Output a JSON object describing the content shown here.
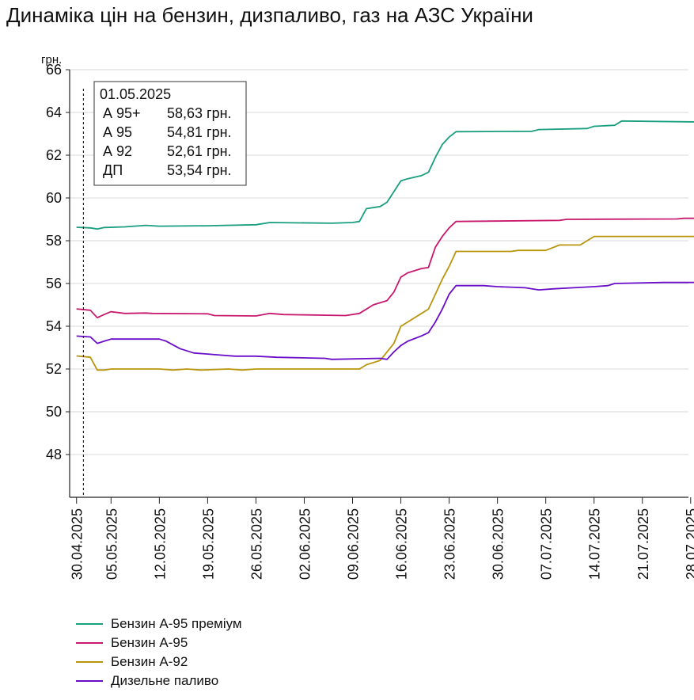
{
  "title": "Динаміка цін на бензин, дизпаливо, газ на АЗС України",
  "chart_data": {
    "type": "line",
    "title": "Динаміка цін на бензин, дизпаливо, газ на АЗС України",
    "ylabel": "грн.",
    "xlabel": "",
    "ylim": [
      46,
      66
    ],
    "yticks": [
      48,
      50,
      52,
      54,
      56,
      58,
      60,
      62,
      64,
      66
    ],
    "xlim": [
      "2025-04-29",
      "2025-08-01"
    ],
    "xticks": [
      "30.04.2025",
      "05.05.2025",
      "12.05.2025",
      "19.05.2025",
      "26.05.2025",
      "02.06.2025",
      "09.06.2025",
      "16.06.2025",
      "23.06.2025",
      "30.06.2025",
      "07.07.2025",
      "14.07.2025",
      "21.07.2025",
      "28.07.2025"
    ],
    "grid": "horizontal",
    "legend_position": "bottom-left",
    "series": [
      {
        "name": "Бензин А-95 преміум",
        "color": "#1a9e80",
        "points": [
          [
            "2025-04-30",
            58.63
          ],
          [
            "2025-05-02",
            58.6
          ],
          [
            "2025-05-03",
            58.55
          ],
          [
            "2025-05-04",
            58.62
          ],
          [
            "2025-05-07",
            58.65
          ],
          [
            "2025-05-10",
            58.72
          ],
          [
            "2025-05-12",
            58.68
          ],
          [
            "2025-05-19",
            58.7
          ],
          [
            "2025-05-26",
            58.75
          ],
          [
            "2025-05-28",
            58.85
          ],
          [
            "2025-06-06",
            58.82
          ],
          [
            "2025-06-09",
            58.85
          ],
          [
            "2025-06-10",
            58.9
          ],
          [
            "2025-06-11",
            59.5
          ],
          [
            "2025-06-13",
            59.6
          ],
          [
            "2025-06-14",
            59.8
          ],
          [
            "2025-06-16",
            60.8
          ],
          [
            "2025-06-17",
            60.9
          ],
          [
            "2025-06-19",
            61.05
          ],
          [
            "2025-06-20",
            61.2
          ],
          [
            "2025-06-21",
            61.9
          ],
          [
            "2025-06-22",
            62.5
          ],
          [
            "2025-06-23",
            62.85
          ],
          [
            "2025-06-24",
            63.1
          ],
          [
            "2025-07-05",
            63.12
          ],
          [
            "2025-07-06",
            63.2
          ],
          [
            "2025-07-13",
            63.25
          ],
          [
            "2025-07-14",
            63.35
          ],
          [
            "2025-07-17",
            63.4
          ],
          [
            "2025-07-18",
            63.6
          ],
          [
            "2025-07-31",
            63.55
          ]
        ]
      },
      {
        "name": "Бензин А-95",
        "color": "#c8186e",
        "points": [
          [
            "2025-04-30",
            54.81
          ],
          [
            "2025-05-02",
            54.75
          ],
          [
            "2025-05-03",
            54.4
          ],
          [
            "2025-05-04",
            54.55
          ],
          [
            "2025-05-05",
            54.68
          ],
          [
            "2025-05-07",
            54.6
          ],
          [
            "2025-05-10",
            54.62
          ],
          [
            "2025-05-11",
            54.6
          ],
          [
            "2025-05-19",
            54.58
          ],
          [
            "2025-05-20",
            54.5
          ],
          [
            "2025-05-26",
            54.48
          ],
          [
            "2025-05-28",
            54.6
          ],
          [
            "2025-05-30",
            54.55
          ],
          [
            "2025-06-08",
            54.5
          ],
          [
            "2025-06-10",
            54.6
          ],
          [
            "2025-06-12",
            55.0
          ],
          [
            "2025-06-14",
            55.2
          ],
          [
            "2025-06-15",
            55.6
          ],
          [
            "2025-06-16",
            56.3
          ],
          [
            "2025-06-17",
            56.5
          ],
          [
            "2025-06-19",
            56.7
          ],
          [
            "2025-06-20",
            56.75
          ],
          [
            "2025-06-21",
            57.7
          ],
          [
            "2025-06-22",
            58.2
          ],
          [
            "2025-06-23",
            58.6
          ],
          [
            "2025-06-24",
            58.9
          ],
          [
            "2025-07-09",
            58.95
          ],
          [
            "2025-07-10",
            59.0
          ],
          [
            "2025-07-26",
            59.02
          ],
          [
            "2025-07-27",
            59.05
          ],
          [
            "2025-07-30",
            59.05
          ],
          [
            "2025-07-31",
            58.9
          ]
        ]
      },
      {
        "name": "Бензин А-92",
        "color": "#b8960c",
        "points": [
          [
            "2025-04-30",
            52.61
          ],
          [
            "2025-05-02",
            52.55
          ],
          [
            "2025-05-03",
            51.95
          ],
          [
            "2025-05-04",
            51.95
          ],
          [
            "2025-05-05",
            52.0
          ],
          [
            "2025-05-12",
            52.0
          ],
          [
            "2025-05-14",
            51.95
          ],
          [
            "2025-05-16",
            52.0
          ],
          [
            "2025-05-18",
            51.95
          ],
          [
            "2025-05-22",
            52.0
          ],
          [
            "2025-05-24",
            51.95
          ],
          [
            "2025-05-26",
            52.0
          ],
          [
            "2025-06-10",
            52.0
          ],
          [
            "2025-06-11",
            52.2
          ],
          [
            "2025-06-13",
            52.4
          ],
          [
            "2025-06-14",
            52.8
          ],
          [
            "2025-06-15",
            53.2
          ],
          [
            "2025-06-16",
            54.0
          ],
          [
            "2025-06-17",
            54.2
          ],
          [
            "2025-06-19",
            54.6
          ],
          [
            "2025-06-20",
            54.8
          ],
          [
            "2025-06-21",
            55.5
          ],
          [
            "2025-06-22",
            56.2
          ],
          [
            "2025-06-23",
            56.8
          ],
          [
            "2025-06-24",
            57.5
          ],
          [
            "2025-07-02",
            57.5
          ],
          [
            "2025-07-03",
            57.55
          ],
          [
            "2025-07-07",
            57.55
          ],
          [
            "2025-07-09",
            57.8
          ],
          [
            "2025-07-12",
            57.8
          ],
          [
            "2025-07-13",
            58.0
          ],
          [
            "2025-07-14",
            58.2
          ],
          [
            "2025-07-31",
            58.2
          ]
        ]
      },
      {
        "name": "Дизельне паливо",
        "color": "#6a0dc8",
        "points": [
          [
            "2025-04-30",
            53.54
          ],
          [
            "2025-05-02",
            53.5
          ],
          [
            "2025-05-03",
            53.2
          ],
          [
            "2025-05-04",
            53.3
          ],
          [
            "2025-05-05",
            53.4
          ],
          [
            "2025-05-12",
            53.4
          ],
          [
            "2025-05-13",
            53.3
          ],
          [
            "2025-05-15",
            52.95
          ],
          [
            "2025-05-17",
            52.75
          ],
          [
            "2025-05-19",
            52.7
          ],
          [
            "2025-05-21",
            52.65
          ],
          [
            "2025-05-23",
            52.6
          ],
          [
            "2025-05-26",
            52.6
          ],
          [
            "2025-05-29",
            52.55
          ],
          [
            "2025-06-05",
            52.5
          ],
          [
            "2025-06-06",
            52.45
          ],
          [
            "2025-06-13",
            52.5
          ],
          [
            "2025-06-14",
            52.45
          ],
          [
            "2025-06-15",
            52.8
          ],
          [
            "2025-06-16",
            53.1
          ],
          [
            "2025-06-17",
            53.3
          ],
          [
            "2025-06-19",
            53.55
          ],
          [
            "2025-06-20",
            53.7
          ],
          [
            "2025-06-21",
            54.2
          ],
          [
            "2025-06-22",
            54.8
          ],
          [
            "2025-06-23",
            55.5
          ],
          [
            "2025-06-24",
            55.9
          ],
          [
            "2025-06-28",
            55.9
          ],
          [
            "2025-06-30",
            55.85
          ],
          [
            "2025-07-04",
            55.8
          ],
          [
            "2025-07-06",
            55.7
          ],
          [
            "2025-07-08",
            55.75
          ],
          [
            "2025-07-11",
            55.8
          ],
          [
            "2025-07-14",
            55.85
          ],
          [
            "2025-07-16",
            55.9
          ],
          [
            "2025-07-17",
            56.0
          ],
          [
            "2025-07-24",
            56.05
          ],
          [
            "2025-07-31",
            56.05
          ]
        ]
      }
    ],
    "marker": {
      "date": "2025-05-01",
      "tooltip": {
        "date": "01.05.2025",
        "rows": [
          {
            "label": "А 95+",
            "value": "58,63 грн."
          },
          {
            "label": "А 95",
            "value": "54,81 грн."
          },
          {
            "label": "А 92",
            "value": "52,61 грн."
          },
          {
            "label": "ДП",
            "value": "53,54 грн."
          }
        ]
      }
    }
  }
}
